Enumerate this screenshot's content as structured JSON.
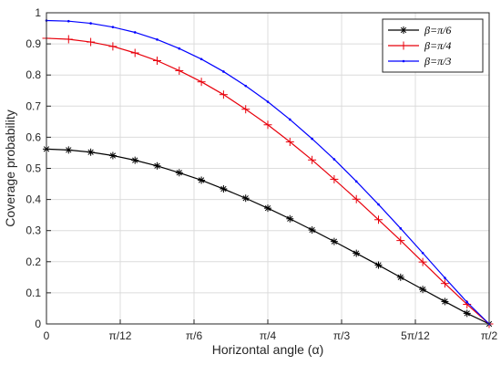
{
  "chart_data": {
    "type": "line",
    "title": "",
    "xlabel": "Horizontal angle (α)",
    "ylabel": "Coverage probability",
    "xlim": [
      0,
      1.5707963
    ],
    "ylim": [
      0,
      1
    ],
    "grid": true,
    "legend_position": "top-right",
    "x_ticks": [
      {
        "value": 0,
        "label": "0"
      },
      {
        "value": 0.2617994,
        "label": "π/12"
      },
      {
        "value": 0.5235988,
        "label": "π/6"
      },
      {
        "value": 0.7853982,
        "label": "π/4"
      },
      {
        "value": 1.0471976,
        "label": "π/3"
      },
      {
        "value": 1.3089969,
        "label": "5π/12"
      },
      {
        "value": 1.5707963,
        "label": "π/2"
      }
    ],
    "y_ticks": [
      {
        "value": 0,
        "label": "0"
      },
      {
        "value": 0.1,
        "label": "0.1"
      },
      {
        "value": 0.2,
        "label": "0.2"
      },
      {
        "value": 0.3,
        "label": "0.3"
      },
      {
        "value": 0.4,
        "label": "0.4"
      },
      {
        "value": 0.5,
        "label": "0.5"
      },
      {
        "value": 0.6,
        "label": "0.6"
      },
      {
        "value": 0.7,
        "label": "0.7"
      },
      {
        "value": 0.8,
        "label": "0.8"
      },
      {
        "value": 0.9,
        "label": "0.9"
      },
      {
        "value": 1,
        "label": "1"
      }
    ],
    "series": [
      {
        "name": "β=π/6",
        "color": "#000000",
        "marker": "asterisk",
        "x": [
          0,
          0.0785,
          0.1571,
          0.2356,
          0.3142,
          0.3927,
          0.4712,
          0.5498,
          0.6283,
          0.7069,
          0.7854,
          0.8639,
          0.9425,
          1.021,
          1.0996,
          1.1781,
          1.2566,
          1.3352,
          1.4137,
          1.4923,
          1.5708
        ],
        "y": [
          0.562,
          0.559,
          0.552,
          0.541,
          0.526,
          0.508,
          0.486,
          0.462,
          0.434,
          0.404,
          0.372,
          0.338,
          0.302,
          0.265,
          0.227,
          0.189,
          0.15,
          0.111,
          0.072,
          0.034,
          0.0
        ]
      },
      {
        "name": "β=π/4",
        "color": "#e8000b",
        "marker": "plus",
        "x": [
          0,
          0.0785,
          0.1571,
          0.2356,
          0.3142,
          0.3927,
          0.4712,
          0.5498,
          0.6283,
          0.7069,
          0.7854,
          0.8639,
          0.9425,
          1.021,
          1.0996,
          1.1781,
          1.2566,
          1.3352,
          1.4137,
          1.4923,
          1.5708
        ],
        "y": [
          0.918,
          0.915,
          0.906,
          0.892,
          0.871,
          0.846,
          0.814,
          0.778,
          0.737,
          0.69,
          0.64,
          0.585,
          0.527,
          0.465,
          0.401,
          0.335,
          0.268,
          0.199,
          0.13,
          0.063,
          0.0
        ]
      },
      {
        "name": "β=π/3",
        "color": "#0000ff",
        "marker": "point",
        "x": [
          0,
          0.0785,
          0.1571,
          0.2356,
          0.3142,
          0.3927,
          0.4712,
          0.5498,
          0.6283,
          0.7069,
          0.7854,
          0.8639,
          0.9425,
          1.021,
          1.0996,
          1.1781,
          1.2566,
          1.3352,
          1.4137,
          1.4923,
          1.5708
        ],
        "y": [
          0.975,
          0.973,
          0.966,
          0.954,
          0.937,
          0.914,
          0.885,
          0.851,
          0.811,
          0.765,
          0.714,
          0.657,
          0.595,
          0.529,
          0.458,
          0.384,
          0.307,
          0.228,
          0.148,
          0.07,
          0.0
        ]
      }
    ]
  }
}
